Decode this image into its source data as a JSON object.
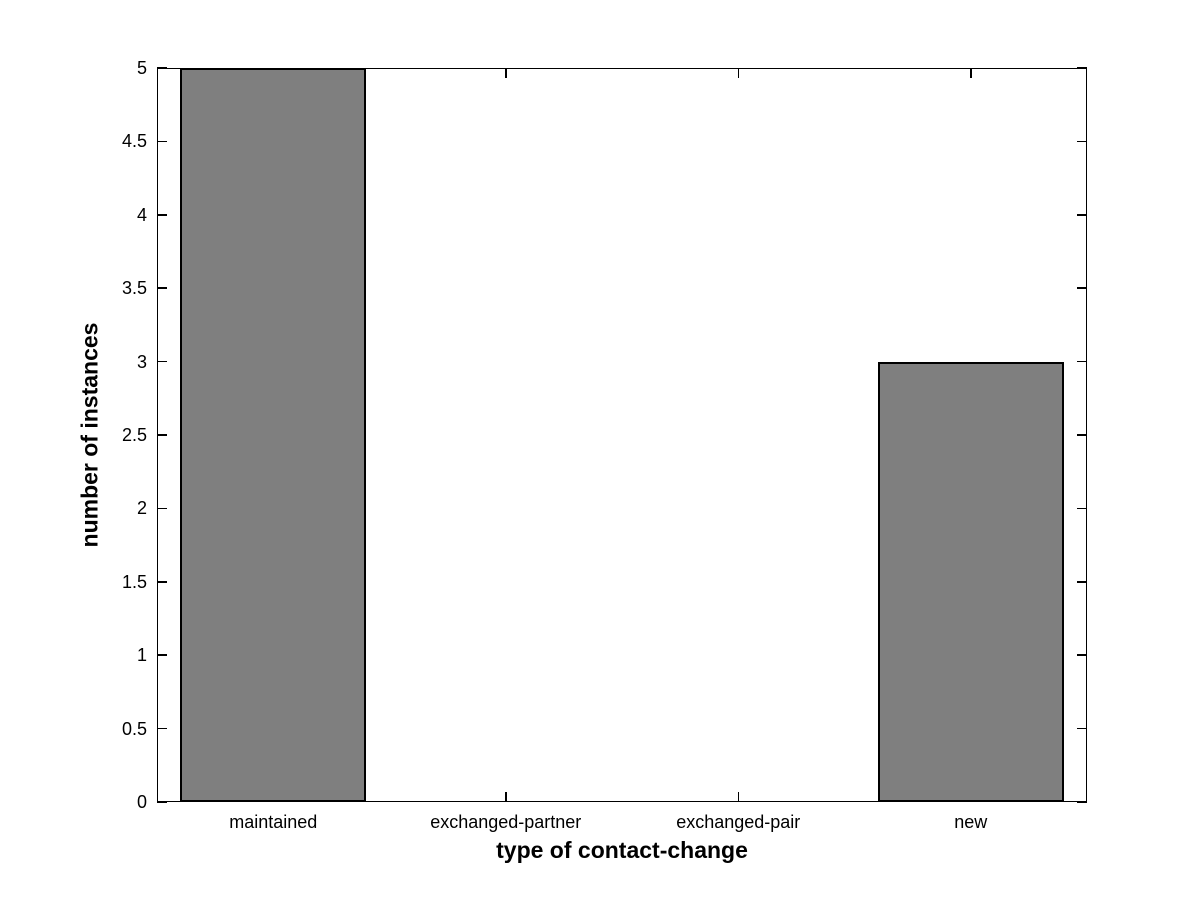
{
  "figure": {
    "background_color": "#ffffff",
    "text_color": "#000000"
  },
  "chart_data": {
    "type": "bar",
    "categories": [
      "maintained",
      "exchanged-partner",
      "exchanged-pair",
      "new"
    ],
    "values": [
      5,
      0,
      0,
      3
    ],
    "title": "",
    "xlabel": "type of contact-change",
    "ylabel": "number of instances",
    "ylim": [
      0,
      5
    ],
    "yticks": [
      0,
      0.5,
      1,
      1.5,
      2,
      2.5,
      3,
      3.5,
      4,
      4.5,
      5
    ],
    "ytick_labels": [
      "0",
      "0.5",
      "1",
      "1.5",
      "2",
      "2.5",
      "3",
      "3.5",
      "4",
      "4.5",
      "5"
    ],
    "bar_width_fraction": 0.8,
    "bar_color": "#7f7f7f",
    "bar_edge_color": "#000000",
    "axis_color": "#000000",
    "grid": false,
    "box": true,
    "tick_direction": "in",
    "legend": null
  }
}
